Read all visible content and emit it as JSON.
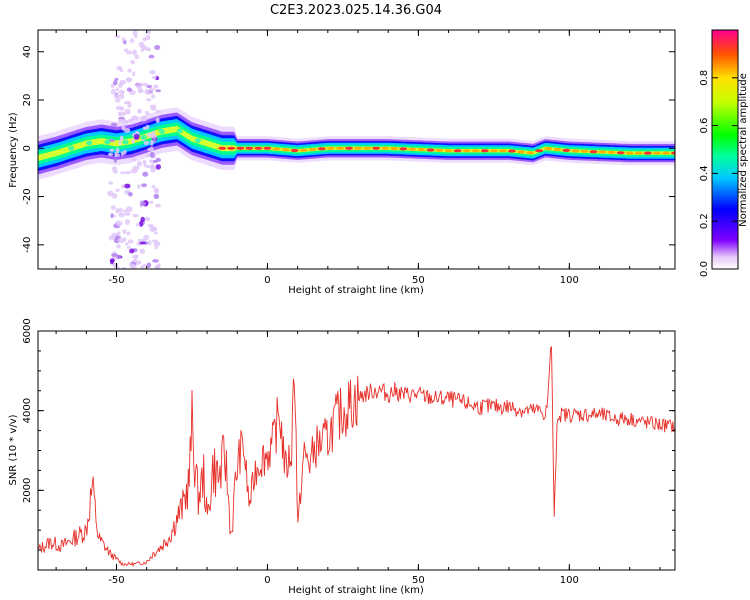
{
  "figure": {
    "title": "C2E3.2023.025.14.36.G04"
  },
  "chart_data": [
    {
      "type": "heatmap",
      "xlabel": "Height of straight line (km)",
      "ylabel": "Frequency (Hz)",
      "xlim": [
        -76,
        135
      ],
      "ylim": [
        -50,
        49
      ],
      "x_ticks": [
        -50,
        0,
        50,
        100
      ],
      "y_ticks": [
        -40,
        -20,
        0,
        20,
        40
      ],
      "x_tick_labels": [
        "-50",
        "0",
        "50",
        "100"
      ],
      "y_tick_labels": [
        "-40",
        "-20",
        "0",
        "20",
        "40"
      ],
      "grid": false,
      "ridge": {
        "x": [
          -76,
          -70,
          -65,
          -60,
          -55,
          -50,
          -45,
          -40,
          -35,
          -30,
          -25,
          -20,
          -15,
          -10,
          -5,
          0,
          10,
          20,
          40,
          60,
          80,
          88,
          92,
          100,
          120,
          135
        ],
        "y": [
          -4,
          -2,
          0,
          2,
          3,
          2,
          3,
          5,
          7,
          8,
          4,
          2,
          0,
          0,
          0,
          0,
          -1,
          0,
          0,
          -1,
          -1,
          -2,
          0,
          -1,
          -2,
          -2
        ]
      },
      "colorbar": {
        "label": "Normalized spectral amplitude",
        "range": [
          0.0,
          1.0
        ],
        "ticks": [
          0.0,
          0.2,
          0.4,
          0.6,
          0.8
        ],
        "tick_labels": [
          "0.0",
          "0.2",
          "0.4",
          "0.6",
          "0.8"
        ]
      }
    },
    {
      "type": "line",
      "xlabel": "Height of straight line (km)",
      "ylabel": "SNR (10 * v/v)",
      "xlim": [
        -76,
        135
      ],
      "ylim": [
        0,
        6000
      ],
      "x_ticks": [
        -50,
        0,
        50,
        100
      ],
      "y_ticks": [
        2000,
        4000,
        6000
      ],
      "x_tick_labels": [
        "-50",
        "0",
        "50",
        "100"
      ],
      "y_tick_labels": [
        "2000",
        "4000",
        "6000"
      ],
      "grid": false,
      "series": [
        {
          "color": "#e8302a",
          "x": [
            -76,
            -72,
            -68,
            -64,
            -60,
            -58,
            -56,
            -52,
            -48,
            -44,
            -40,
            -38,
            -35,
            -32,
            -30,
            -28,
            -26,
            -25,
            -23,
            -21,
            -20,
            -18,
            -16,
            -14,
            -12,
            -10,
            -8,
            -6,
            -4,
            -2,
            0,
            2,
            4,
            6,
            8,
            9,
            10,
            12,
            14,
            16,
            18,
            20,
            22,
            25,
            28,
            30,
            32,
            35,
            38,
            40,
            42,
            45,
            48,
            50,
            55,
            60,
            65,
            70,
            75,
            80,
            85,
            90,
            92,
            93,
            94,
            95,
            96,
            100,
            105,
            110,
            115,
            120,
            125,
            130,
            135
          ],
          "y": [
            500,
            700,
            600,
            800,
            1000,
            2100,
            800,
            400,
            150,
            150,
            200,
            400,
            600,
            900,
            1300,
            1600,
            2200,
            3600,
            1800,
            2400,
            1200,
            2600,
            2300,
            2900,
            800,
            2700,
            3200,
            1600,
            2500,
            2800,
            2900,
            3200,
            4000,
            2500,
            3000,
            5600,
            1000,
            2900,
            2700,
            3100,
            3200,
            3300,
            3700,
            4000,
            4200,
            4300,
            4400,
            4500,
            4500,
            4400,
            4500,
            4400,
            4400,
            4400,
            4300,
            4300,
            4200,
            4100,
            4100,
            4100,
            4000,
            4000,
            3900,
            4300,
            6000,
            1300,
            3900,
            3900,
            3900,
            3900,
            3800,
            3800,
            3700,
            3650,
            3600
          ]
        }
      ]
    }
  ]
}
